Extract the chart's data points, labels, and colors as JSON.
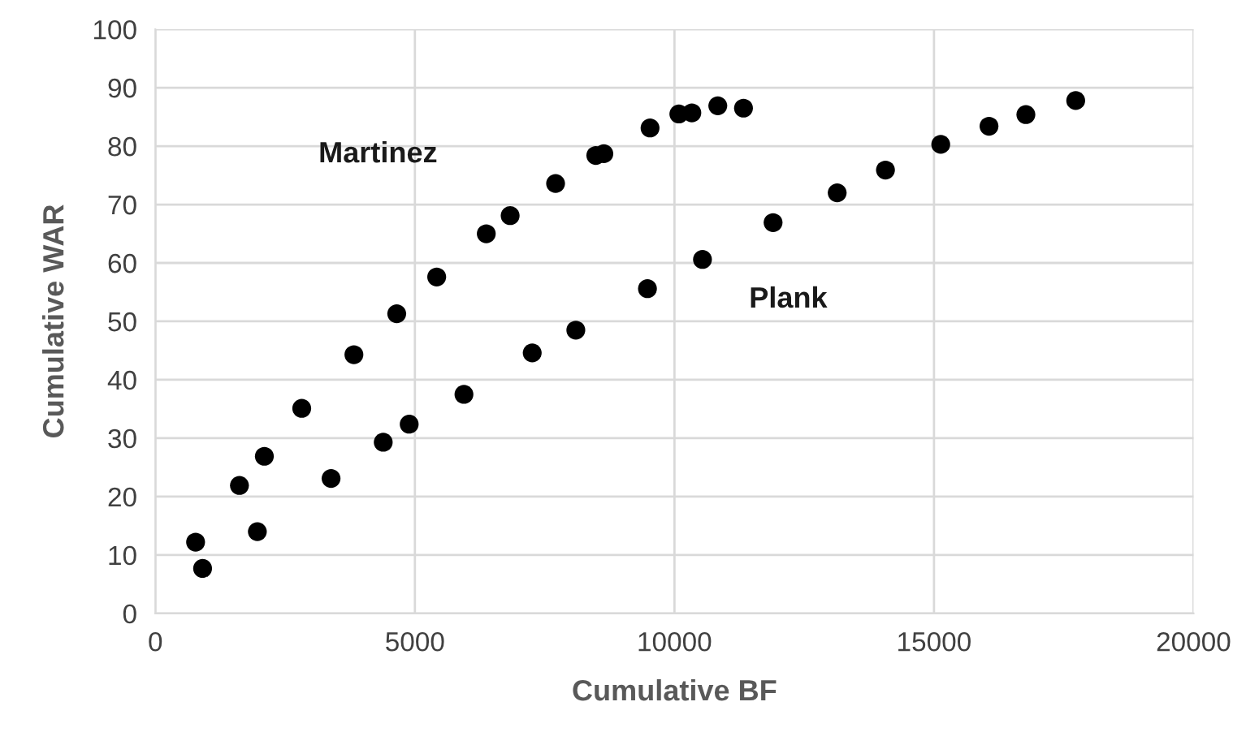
{
  "chart_data": {
    "type": "scatter",
    "xlabel": "Cumulative BF",
    "ylabel": "Cumulative WAR",
    "xlim": [
      0,
      20000
    ],
    "xticks": [
      0,
      5000,
      10000,
      15000,
      20000
    ],
    "ylim": [
      0,
      100
    ],
    "yticks": [
      0,
      10,
      20,
      30,
      40,
      50,
      60,
      70,
      80,
      90,
      100
    ],
    "grid": true,
    "marker": "circle",
    "legend": false,
    "series": [
      {
        "name": "Martinez",
        "color": "#000000",
        "x": [
          775,
          1620,
          2100,
          2820,
          3825,
          4650,
          5420,
          6375,
          6835,
          7710,
          8485,
          8640,
          9530,
          10085,
          10335,
          10835,
          11330
        ],
        "values": [
          12.2,
          21.9,
          26.9,
          35.1,
          44.3,
          51.3,
          57.6,
          65.0,
          68.1,
          73.6,
          78.4,
          78.7,
          83.1,
          85.5,
          85.7,
          86.9,
          86.5
        ]
      },
      {
        "name": "Plank",
        "color": "#000000",
        "x": [
          910,
          1965,
          3385,
          4390,
          4890,
          5945,
          7260,
          8100,
          9480,
          10540,
          11900,
          13135,
          14065,
          15130,
          16060,
          16770,
          17730
        ],
        "values": [
          7.7,
          14.0,
          23.1,
          29.3,
          32.4,
          37.5,
          44.6,
          48.5,
          55.6,
          60.6,
          66.9,
          72.0,
          75.9,
          80.3,
          83.4,
          85.4,
          87.8
        ]
      }
    ]
  }
}
